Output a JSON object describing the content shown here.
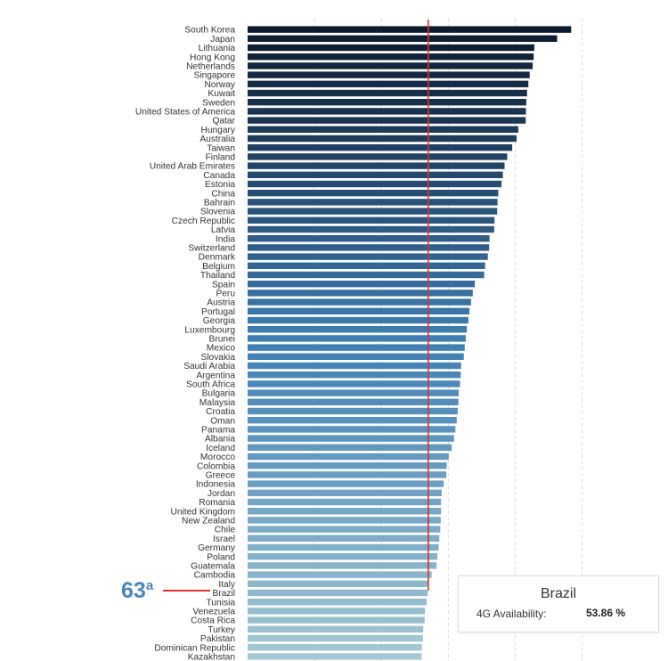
{
  "chart_data": {
    "type": "bar",
    "orientation": "horizontal",
    "categories": [
      "South Korea",
      "Japan",
      "Lithuania",
      "Hong Kong",
      "Netherlands",
      "Singapore",
      "Norway",
      "Kuwait",
      "Sweden",
      "United States of America",
      "Qatar",
      "Hungary",
      "Australia",
      "Taiwan",
      "Finland",
      "United Arab Emirates",
      "Canada",
      "Estonia",
      "China",
      "Bahrain",
      "Slovenia",
      "Czech Republic",
      "Latvia",
      "India",
      "Switzerland",
      "Denmark",
      "Belgium",
      "Thailand",
      "Spain",
      "Peru",
      "Austria",
      "Portugal",
      "Georgia",
      "Luxembourg",
      "Brunei",
      "Mexico",
      "Slovakia",
      "Saudi Arabia",
      "Argentina",
      "South Africa",
      "Bulgaria",
      "Malaysia",
      "Croatia",
      "Oman",
      "Panama",
      "Albania",
      "Iceland",
      "Morocco",
      "Colombia",
      "Greece",
      "Indonesia",
      "Jordan",
      "Romania",
      "United Kingdom",
      "New Zealand",
      "Chile",
      "Israel",
      "Germany",
      "Poland",
      "Guatemala",
      "Cambodia",
      "Italy",
      "Brazil",
      "Tunisia",
      "Venezuela",
      "Costa Rica",
      "Turkey",
      "Pakistan",
      "Dominican Republic",
      "Kazakhstan"
    ],
    "values": [
      96.7,
      92.5,
      85.7,
      85.5,
      85.2,
      84.3,
      83.9,
      83.5,
      83.3,
      83.2,
      83.1,
      80.9,
      80.4,
      79.1,
      77.6,
      76.8,
      76.3,
      75.9,
      74.9,
      74.7,
      74.6,
      73.8,
      73.7,
      72.3,
      72.2,
      71.8,
      71.0,
      70.7,
      67.9,
      67.3,
      66.8,
      66.3,
      66.0,
      65.5,
      65.2,
      64.9,
      64.6,
      63.8,
      63.7,
      63.5,
      63.1,
      63.0,
      62.8,
      62.5,
      62.1,
      61.7,
      61.0,
      60.1,
      59.5,
      59.4,
      58.6,
      58.0,
      57.8,
      57.8,
      57.7,
      57.6,
      57.3,
      57.1,
      56.7,
      56.5,
      55.0,
      54.0,
      53.86,
      53.5,
      53.0,
      52.9,
      52.5,
      52.4,
      52.1,
      52.0
    ],
    "xlim": [
      0,
      115
    ],
    "grid": true,
    "reference_line": 54.0,
    "highlight": {
      "country": "Brazil",
      "rank": "63",
      "rank_suffix": "a"
    },
    "colors": {
      "start": "#0c1a2e",
      "mid": "#3f7fb5",
      "end": "#a3c9d4",
      "reference": "#e03030",
      "grid": "#dddddd"
    }
  },
  "tooltip": {
    "title": "Brazil",
    "metric_label": "4G Availability:",
    "metric_value": "53.86 %"
  }
}
